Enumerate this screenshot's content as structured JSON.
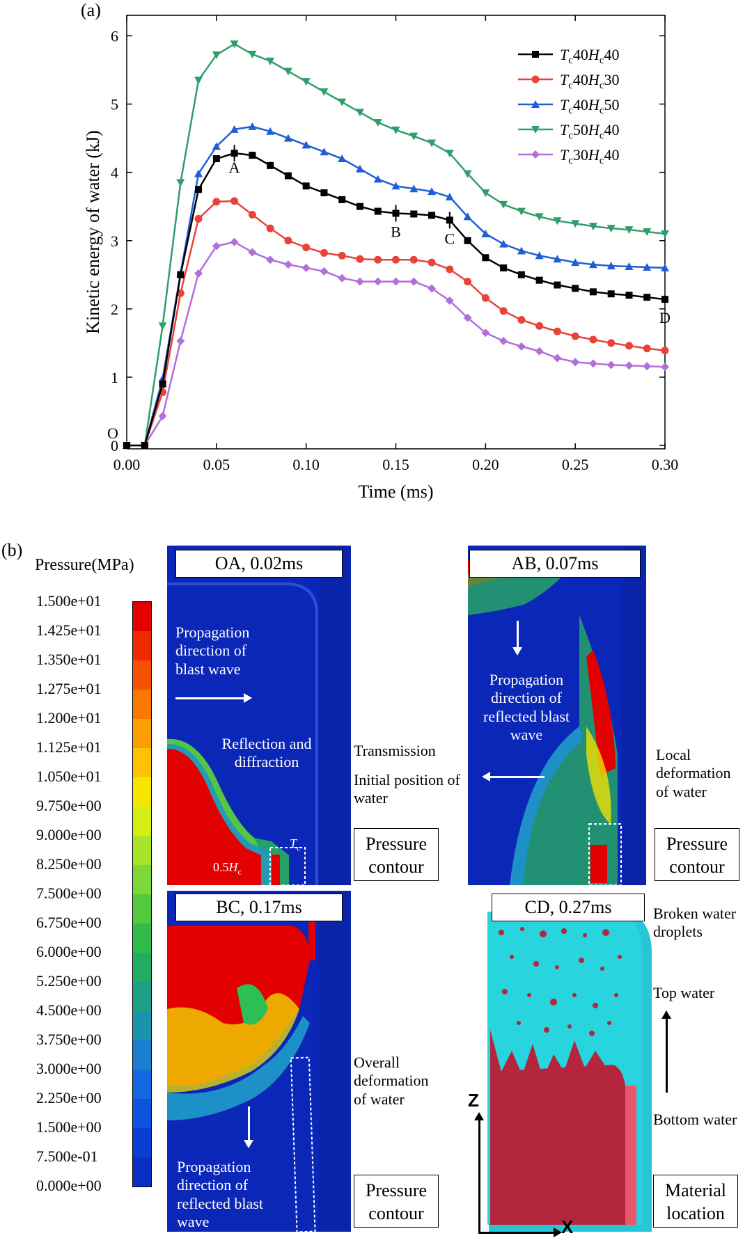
{
  "panel_a_label": "(a)",
  "panel_b_label": "(b)",
  "chart_data": {
    "type": "line",
    "title": "",
    "xlabel": "Time (ms)",
    "ylabel": "Kinetic energy of water (kJ)",
    "xlim": [
      0.0,
      0.3
    ],
    "ylim": [
      -0.05,
      6.3
    ],
    "xticks": [
      "0.00",
      "0.05",
      "0.10",
      "0.15",
      "0.20",
      "0.25",
      "0.30"
    ],
    "yticks": [
      "0",
      "1",
      "2",
      "3",
      "4",
      "5",
      "6"
    ],
    "grid": false,
    "legend_position": "top-right",
    "x": [
      0.0,
      0.01,
      0.02,
      0.03,
      0.04,
      0.05,
      0.06,
      0.07,
      0.08,
      0.09,
      0.1,
      0.11,
      0.12,
      0.13,
      0.14,
      0.15,
      0.16,
      0.17,
      0.18,
      0.19,
      0.2,
      0.21,
      0.22,
      0.23,
      0.24,
      0.25,
      0.26,
      0.27,
      0.28,
      0.29,
      0.3
    ],
    "series": [
      {
        "name": "Tc40Hc40",
        "legend": {
          "t": "T",
          "ts": "c",
          "m": "40",
          "h": "H",
          "hs": "c",
          "e": "40"
        },
        "color": "#000000",
        "marker": "square",
        "values": [
          0,
          0,
          0.9,
          2.5,
          3.75,
          4.2,
          4.28,
          4.25,
          4.1,
          3.95,
          3.8,
          3.7,
          3.6,
          3.5,
          3.43,
          3.4,
          3.39,
          3.37,
          3.3,
          3.0,
          2.75,
          2.6,
          2.5,
          2.42,
          2.35,
          2.3,
          2.25,
          2.22,
          2.2,
          2.17,
          2.14
        ]
      },
      {
        "name": "Tc40Hc30",
        "legend": {
          "t": "T",
          "ts": "c",
          "m": "40",
          "h": "H",
          "hs": "c",
          "e": "30"
        },
        "color": "#e8423b",
        "marker": "circle",
        "values": [
          0,
          0,
          0.78,
          2.23,
          3.32,
          3.57,
          3.58,
          3.38,
          3.18,
          3.0,
          2.9,
          2.82,
          2.78,
          2.73,
          2.72,
          2.72,
          2.72,
          2.68,
          2.58,
          2.4,
          2.16,
          1.97,
          1.84,
          1.75,
          1.67,
          1.6,
          1.55,
          1.5,
          1.46,
          1.42,
          1.39
        ]
      },
      {
        "name": "Tc40Hc50",
        "legend": {
          "t": "T",
          "ts": "c",
          "m": "40",
          "h": "H",
          "hs": "c",
          "e": "50"
        },
        "color": "#1f5fd6",
        "marker": "triangle-up",
        "values": [
          0,
          0,
          0.98,
          2.52,
          3.98,
          4.38,
          4.63,
          4.67,
          4.6,
          4.5,
          4.4,
          4.3,
          4.2,
          4.05,
          3.9,
          3.8,
          3.76,
          3.72,
          3.64,
          3.35,
          3.1,
          2.95,
          2.85,
          2.78,
          2.73,
          2.68,
          2.65,
          2.63,
          2.62,
          2.61,
          2.6
        ]
      },
      {
        "name": "Tc50Hc40",
        "legend": {
          "t": "T",
          "ts": "c",
          "m": "50",
          "h": "H",
          "hs": "c",
          "e": "40"
        },
        "color": "#2f9e6a",
        "marker": "triangle-down",
        "values": [
          0,
          0,
          1.75,
          3.85,
          5.35,
          5.72,
          5.88,
          5.73,
          5.63,
          5.48,
          5.33,
          5.18,
          5.03,
          4.88,
          4.73,
          4.62,
          4.53,
          4.43,
          4.28,
          3.98,
          3.7,
          3.53,
          3.43,
          3.35,
          3.29,
          3.25,
          3.21,
          3.18,
          3.16,
          3.13,
          3.1
        ]
      },
      {
        "name": "Tc30Hc40",
        "legend": {
          "t": "T",
          "ts": "c",
          "m": "30",
          "h": "H",
          "hs": "c",
          "e": "40"
        },
        "color": "#b06fd9",
        "marker": "diamond",
        "values": [
          0,
          0,
          0.43,
          1.53,
          2.52,
          2.92,
          2.98,
          2.83,
          2.72,
          2.65,
          2.6,
          2.55,
          2.45,
          2.4,
          2.4,
          2.4,
          2.4,
          2.3,
          2.12,
          1.87,
          1.65,
          1.53,
          1.45,
          1.38,
          1.28,
          1.22,
          1.2,
          1.18,
          1.17,
          1.16,
          1.15
        ]
      }
    ],
    "annotations": [
      {
        "text": "O",
        "x": 0.0,
        "y": 0.0
      },
      {
        "text": "A",
        "x": 0.06,
        "y": 4.28
      },
      {
        "text": "B",
        "x": 0.15,
        "y": 3.4
      },
      {
        "text": "C",
        "x": 0.18,
        "y": 3.3
      },
      {
        "text": "D",
        "x": 0.3,
        "y": 2.14
      }
    ]
  },
  "colorbar": {
    "title": "Pressure(MPa)",
    "ticks": [
      "1.500e+01",
      "1.425e+01",
      "1.350e+01",
      "1.275e+01",
      "1.200e+01",
      "1.125e+01",
      "1.050e+01",
      "9.750e+00",
      "9.000e+00",
      "8.250e+00",
      "7.500e+00",
      "6.750e+00",
      "6.000e+00",
      "5.250e+00",
      "4.500e+00",
      "3.750e+00",
      "3.000e+00",
      "2.250e+00",
      "1.500e+00",
      "7.500e-01",
      "0.000e+00"
    ],
    "colors": [
      "#e40000",
      "#ee2a00",
      "#f65000",
      "#fb7800",
      "#fd9e00",
      "#fdc300",
      "#f7e500",
      "#d3ee12",
      "#a8e42a",
      "#7dd83a",
      "#52c93f",
      "#33bb4a",
      "#21ad62",
      "#1ea088",
      "#1d92ac",
      "#1a7fd0",
      "#1468e0",
      "#0f52dd",
      "#0b3ed2",
      "#0a2fc3"
    ]
  },
  "subpanels": {
    "oa": {
      "title": "OA, 0.02ms",
      "label_prop": "Propagation direction of blast wave",
      "label_refl": "Reflection and diffraction",
      "label_trans": "Transmission",
      "label_init": "Initial position of water",
      "label_box": "Pressure contour",
      "label_hc": "0.5",
      "label_hc_sym": "H",
      "label_hc_sub": "c",
      "label_tc": "T",
      "label_tc_sub": "c"
    },
    "ab": {
      "title": "AB, 0.07ms",
      "label_prop": "Propagation direction of reflected blast wave",
      "label_local": "Local deformation of water",
      "label_box": "Pressure contour"
    },
    "bc": {
      "title": "BC, 0.17ms",
      "label_prop": "Propagation direction of reflected blast wave",
      "label_overall": "Overall deformation of water",
      "label_box": "Pressure contour"
    },
    "cd": {
      "title": "CD, 0.27ms",
      "label_broken": "Broken water droplets",
      "label_top": "Top water",
      "label_bottom": "Bottom water",
      "label_box": "Material location",
      "axis_z": "Z",
      "axis_x": "X"
    }
  }
}
